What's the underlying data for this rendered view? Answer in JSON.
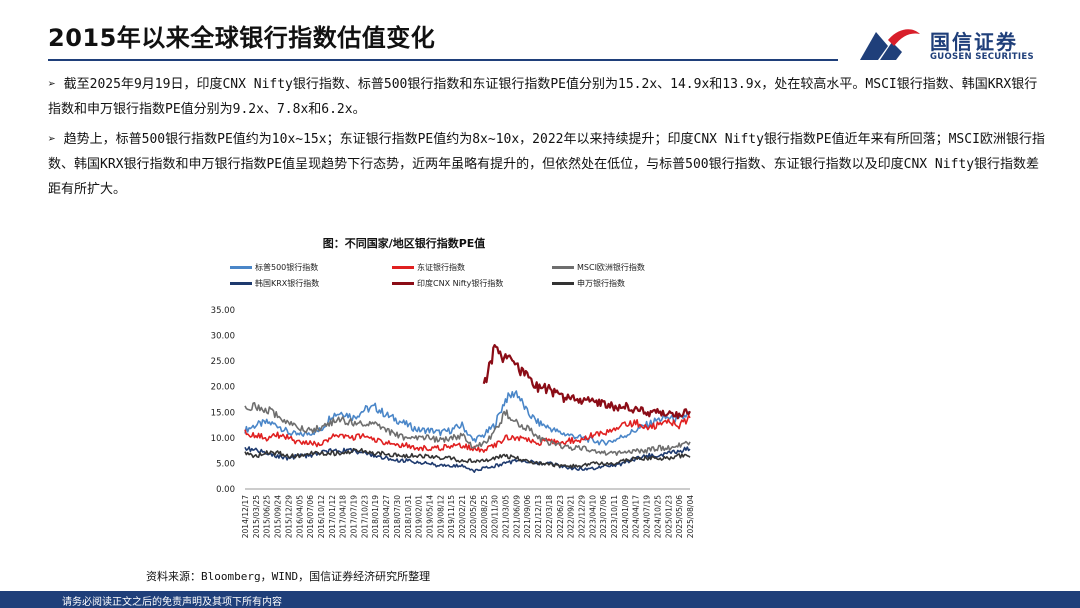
{
  "header": {
    "title": "2015年以来全球银行指数估值变化"
  },
  "logo": {
    "name_cn": "国信证券",
    "name_en": "GUOSEN SECURITIES"
  },
  "bullets": [
    "➢ 截至2025年9月19日，印度CNX Nifty银行指数、标普500银行指数和东证银行指数PE值分别为15.2x、14.9x和13.9x，处在较高水平。MSCI银行指数、韩国KRX银行指数和申万银行指数PE值分别为9.2x、7.8x和6.2x。",
    "➢ 趋势上，标普500银行指数PE值约为10x~15x；东证银行指数PE值约为8x~10x，2022年以来持续提升；印度CNX Nifty银行指数PE值近年来有所回落；MSCI欧洲银行指数、韩国KRX银行指数和申万银行指数PE值呈现趋势下行态势，近两年虽略有提升的，但依然处在低位，与标普500银行指数、东证银行指数以及印度CNX Nifty银行指数差距有所扩大。"
  ],
  "source": "资料来源：Bloomberg，WIND，国信证券经济研究所整理",
  "footer": {
    "disclaimer": "请务必阅读正文之后的免责声明及其项下所有内容"
  },
  "chart_data": {
    "type": "line",
    "title": "图：不同国家/地区银行指数PE值",
    "ylim": [
      0,
      35
    ],
    "yticks": [
      "0.00",
      "5.00",
      "10.00",
      "15.00",
      "20.00",
      "25.00",
      "30.00",
      "35.00"
    ],
    "x_tick_labels": [
      "2014/12/17",
      "2015/03/25",
      "2015/06/25",
      "2015/09/24",
      "2015/12/29",
      "2016/04/05",
      "2016/07/06",
      "2016/10/12",
      "2017/01/12",
      "2017/04/18",
      "2017/07/19",
      "2017/10/23",
      "2018/01/19",
      "2018/04/27",
      "2018/07/30",
      "2018/10/31",
      "2019/02/01",
      "2019/05/14",
      "2019/08/12",
      "2019/11/15",
      "2020/02/21",
      "2020/05/26",
      "2020/08/25",
      "2020/11/30",
      "2021/03/05",
      "2021/06/09",
      "2021/09/06",
      "2021/12/13",
      "2022/03/18",
      "2022/06/23",
      "2022/09/21",
      "2022/12/29",
      "2023/04/10",
      "2023/07/06",
      "2023/10/11",
      "2024/01/09",
      "2024/04/17",
      "2024/07/19",
      "2024/10/25",
      "2025/01/23",
      "2025/05/06",
      "2025/08/04"
    ],
    "grid": false,
    "legend_position": "top",
    "series": [
      {
        "name": "标普500银行指数",
        "color": "#4a86c8",
        "values": [
          11.5,
          12.5,
          13.0,
          12.5,
          11.0,
          10.5,
          11.0,
          11.5,
          14.5,
          15.0,
          14.0,
          15.5,
          16.0,
          14.5,
          13.5,
          12.5,
          11.5,
          11.5,
          11.0,
          11.5,
          12.5,
          9.5,
          10.5,
          12.5,
          17.5,
          19.0,
          15.0,
          13.0,
          12.0,
          11.0,
          10.5,
          10.0,
          9.5,
          9.0,
          9.5,
          10.5,
          11.5,
          12.5,
          13.5,
          14.0,
          13.5,
          14.9
        ]
      },
      {
        "name": "东证银行指数",
        "color": "#e02020",
        "values": [
          11.0,
          10.5,
          10.0,
          10.5,
          10.0,
          9.0,
          9.0,
          8.5,
          10.5,
          10.5,
          10.0,
          10.5,
          9.5,
          9.0,
          8.5,
          8.5,
          8.0,
          8.0,
          8.0,
          8.5,
          8.5,
          8.0,
          7.5,
          8.5,
          10.0,
          10.0,
          9.5,
          9.0,
          9.5,
          9.0,
          9.5,
          9.5,
          10.5,
          11.0,
          11.5,
          12.5,
          13.0,
          12.0,
          12.5,
          13.5,
          12.5,
          13.9
        ]
      },
      {
        "name": "MSCI欧洲银行指数",
        "color": "#6e6e6e",
        "values": [
          16.5,
          16.0,
          15.5,
          14.5,
          13.0,
          12.0,
          11.5,
          12.0,
          13.0,
          13.5,
          13.0,
          13.0,
          12.5,
          11.5,
          10.5,
          10.0,
          10.0,
          10.0,
          9.5,
          10.0,
          10.5,
          8.0,
          9.0,
          11.0,
          15.0,
          13.0,
          12.0,
          10.0,
          9.0,
          8.5,
          8.0,
          8.0,
          7.5,
          7.0,
          7.0,
          7.0,
          7.5,
          7.5,
          8.0,
          8.0,
          8.5,
          9.2
        ]
      },
      {
        "name": "韩国KRX银行指数",
        "color": "#1e3a6e",
        "values": [
          8.0,
          7.5,
          7.0,
          6.5,
          6.0,
          6.5,
          6.5,
          7.0,
          7.5,
          7.5,
          7.5,
          7.0,
          6.5,
          6.0,
          5.5,
          5.5,
          5.0,
          5.0,
          4.5,
          4.5,
          4.5,
          3.5,
          4.0,
          4.5,
          5.0,
          5.5,
          5.5,
          5.0,
          5.0,
          4.5,
          4.0,
          4.0,
          4.0,
          4.5,
          4.5,
          5.0,
          6.0,
          6.5,
          6.5,
          7.0,
          7.5,
          7.8
        ]
      },
      {
        "name": "印度CNX Nifty银行指数",
        "color": "#8b0c16",
        "start_index": 22,
        "values": [
          null,
          null,
          null,
          null,
          null,
          null,
          null,
          null,
          null,
          null,
          null,
          null,
          null,
          null,
          null,
          null,
          null,
          null,
          null,
          null,
          null,
          null,
          20.0,
          27.5,
          25.5,
          24.0,
          22.0,
          20.0,
          19.5,
          18.0,
          17.5,
          17.5,
          17.0,
          16.5,
          16.0,
          16.5,
          15.5,
          15.0,
          15.0,
          14.5,
          14.5,
          15.2
        ]
      },
      {
        "name": "申万银行指数",
        "color": "#333333",
        "values": [
          7.0,
          6.5,
          7.0,
          7.0,
          6.5,
          6.5,
          7.0,
          7.0,
          7.0,
          7.0,
          7.5,
          7.5,
          7.0,
          7.0,
          6.5,
          6.5,
          6.5,
          6.5,
          6.0,
          6.0,
          5.5,
          5.5,
          5.5,
          6.0,
          6.5,
          6.0,
          5.5,
          5.0,
          5.0,
          4.5,
          4.5,
          4.5,
          5.0,
          5.0,
          5.0,
          5.5,
          6.0,
          6.0,
          6.0,
          6.0,
          6.5,
          6.2
        ]
      }
    ]
  }
}
